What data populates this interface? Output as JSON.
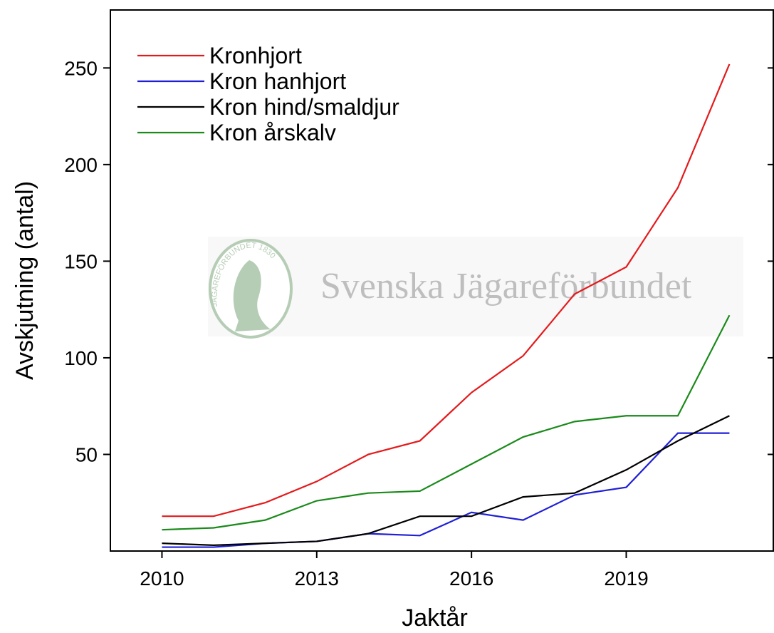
{
  "chart_data": {
    "type": "line",
    "xlabel": "Jaktår",
    "ylabel": "Avskjutning (antal)",
    "watermark": "Svenska Jägareförbundet",
    "watermark_logo": "JÄGAREFÖRBUNDET 1830",
    "x": [
      2010,
      2011,
      2012,
      2013,
      2014,
      2015,
      2016,
      2017,
      2018,
      2019,
      2020,
      2021
    ],
    "series": [
      {
        "name": "Kronhjort",
        "color": "#e41a1c",
        "values": [
          18,
          18,
          25,
          36,
          50,
          57,
          82,
          101,
          133,
          147,
          188,
          252
        ]
      },
      {
        "name": "Kron hanhjort",
        "color": "#1f1fd6",
        "values": [
          2,
          2,
          4,
          5,
          9,
          8,
          20,
          16,
          29,
          33,
          61,
          61
        ]
      },
      {
        "name": "Kron hind/smaldjur",
        "color": "#000000",
        "values": [
          4,
          3,
          4,
          5,
          9,
          18,
          18,
          28,
          30,
          42,
          57,
          70
        ]
      },
      {
        "name": "Kron årskalv",
        "color": "#1a8a1a",
        "values": [
          11,
          12,
          16,
          26,
          30,
          31,
          45,
          59,
          67,
          70,
          70,
          122
        ]
      }
    ],
    "xlim": [
      2009,
      2021.85
    ],
    "xticks": [
      2010,
      2013,
      2016,
      2019
    ],
    "ylim": [
      0,
      280
    ],
    "yticks": [
      50,
      100,
      150,
      200,
      250
    ],
    "legend": "upper left",
    "grid": false
  }
}
